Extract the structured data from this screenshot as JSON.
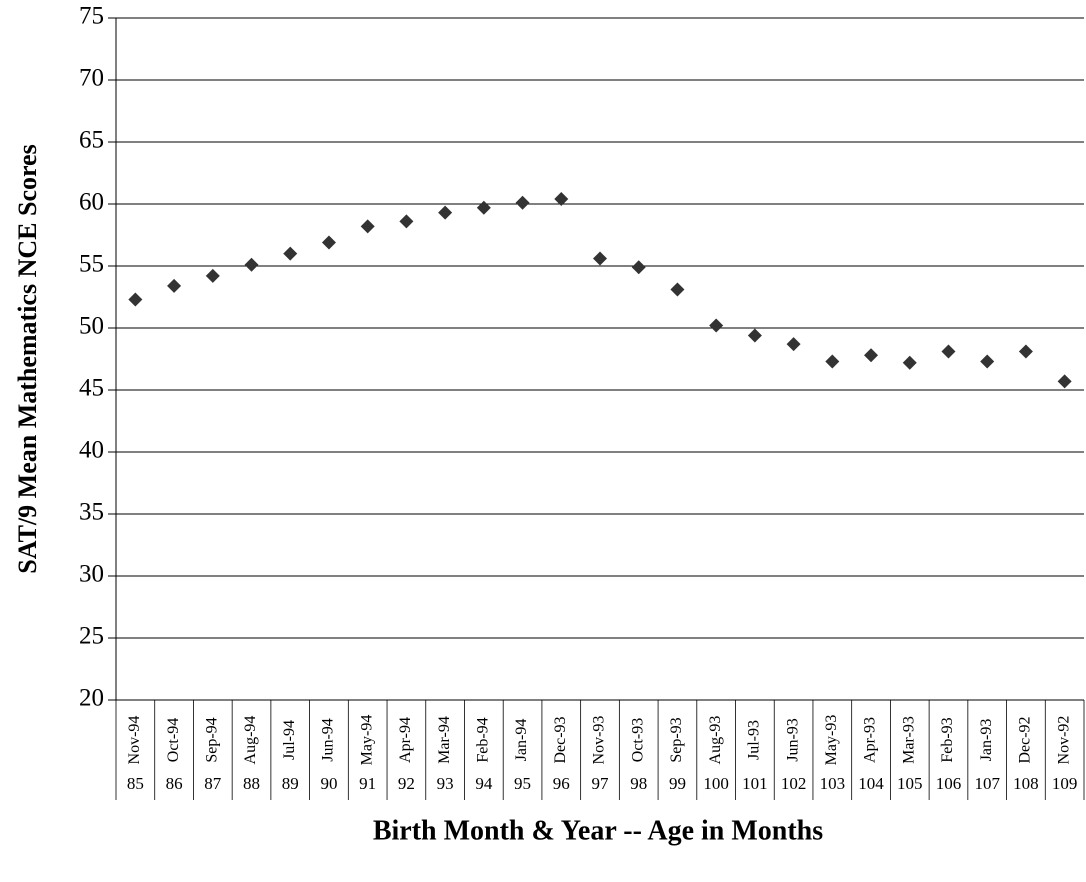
{
  "chart_data": {
    "type": "scatter",
    "y_label": "SAT/9 Mean Mathematics NCE Scores",
    "x_label": "Birth Month & Year -- Age in Months",
    "categories": [
      "Nov-94",
      "Oct-94",
      "Sep-94",
      "Aug-94",
      "Jul-94",
      "Jun-94",
      "May-94",
      "Apr-94",
      "Mar-94",
      "Feb-94",
      "Jan-94",
      "Dec-93",
      "Nov-93",
      "Oct-93",
      "Sep-93",
      "Aug-93",
      "Jul-93",
      "Jun-93",
      "May-93",
      "Apr-93",
      "Mar-93",
      "Feb-93",
      "Jan-93",
      "Dec-92",
      "Nov-92"
    ],
    "ages": [
      85,
      86,
      87,
      88,
      89,
      90,
      91,
      92,
      93,
      94,
      95,
      96,
      97,
      98,
      99,
      100,
      101,
      102,
      103,
      104,
      105,
      106,
      107,
      108,
      109
    ],
    "values": [
      52.3,
      53.4,
      54.2,
      55.1,
      56.0,
      56.9,
      58.2,
      58.6,
      59.3,
      59.7,
      60.1,
      60.4,
      55.6,
      54.9,
      53.1,
      50.2,
      49.4,
      48.7,
      47.3,
      47.8,
      47.2,
      48.1,
      47.3,
      48.1,
      45.7
    ],
    "color": "#333333",
    "ylim": [
      20,
      75
    ],
    "yticks": [
      20,
      25,
      30,
      35,
      40,
      45,
      50,
      55,
      60,
      65,
      70,
      75
    ],
    "grid": true
  }
}
